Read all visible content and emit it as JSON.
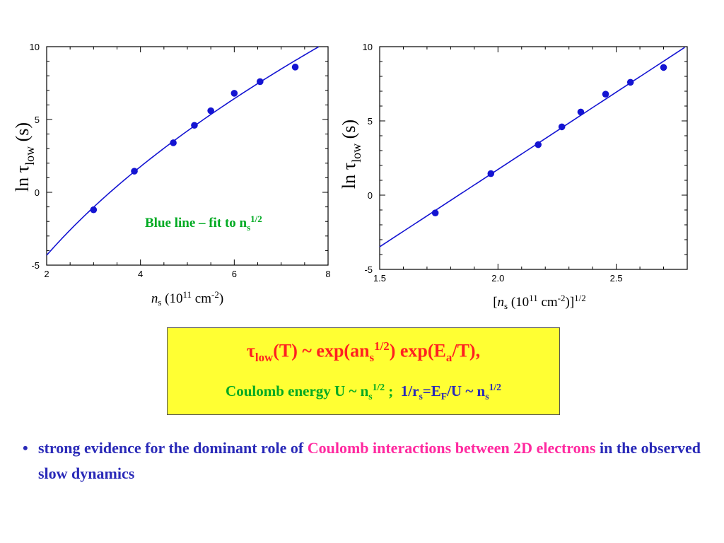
{
  "chart_data": [
    {
      "type": "scatter",
      "xlim": [
        2,
        8
      ],
      "ylim": [
        -5,
        10
      ],
      "xticks": [
        "2",
        "4",
        "6",
        "8"
      ],
      "yticks": [
        "-5",
        "0",
        "5",
        "10"
      ],
      "xlabel": {
        "var": "n",
        "sub": "s",
        "pre": "(10",
        "sup1": "11",
        "mid": " cm",
        "sup2": "-2",
        "post": ")"
      },
      "ylabel": {
        "pre": "ln ",
        "tau": "τ",
        "sub": "low",
        "post": " (s)"
      },
      "points": [
        [
          3.0,
          -1.2
        ],
        [
          3.87,
          1.45
        ],
        [
          4.7,
          3.4
        ],
        [
          5.15,
          4.6
        ],
        [
          5.5,
          5.6
        ],
        [
          6.0,
          6.8
        ],
        [
          6.55,
          7.6
        ],
        [
          7.3,
          8.6
        ]
      ],
      "fit": {
        "type": "sqrt",
        "color": "#1414d2"
      },
      "annotation": {
        "text": "Blue line – fit to n",
        "sub": "s",
        "sup": "1/2",
        "color": "#00aa22"
      }
    },
    {
      "type": "scatter",
      "xlim": [
        1.5,
        2.8
      ],
      "ylim": [
        -5,
        10
      ],
      "xticks": [
        "1.5",
        "2.0",
        "2.5"
      ],
      "yticks": [
        "-5",
        "0",
        "5",
        "10"
      ],
      "xlabel": {
        "pre": "[",
        "var": "n",
        "sub": "s",
        "mid": " (10",
        "sup1": "11",
        "mid2": " cm",
        "sup2": "-2",
        "post": ")]",
        "sup3": "1/2"
      },
      "ylabel": {
        "pre": "ln ",
        "tau": "τ",
        "sub": "low",
        "post": " (s)"
      },
      "points": [
        [
          1.735,
          -1.2
        ],
        [
          1.97,
          1.45
        ],
        [
          2.17,
          3.4
        ],
        [
          2.27,
          4.6
        ],
        [
          2.35,
          5.6
        ],
        [
          2.455,
          6.8
        ],
        [
          2.56,
          7.6
        ],
        [
          2.7,
          8.6
        ]
      ],
      "fit": {
        "type": "linear",
        "color": "#1414d2"
      }
    }
  ],
  "formula": {
    "tau": "τ",
    "low": "low",
    "line1_a": "(T) ~ exp(an",
    "s1": "s",
    "half1": "1/2",
    "line1_b": ") exp(E",
    "a": "a",
    "line1_c": "/T),",
    "coulomb": "Coulomb energy U ~ n",
    "s2": "s",
    "half2": "1/2",
    "sep": " ;",
    "rs_a": "  1/r",
    "s3": "s",
    "rs_b": "=E",
    "F": "F",
    "rs_c": "/U ~ n",
    "s4": "s",
    "half3": "1/2"
  },
  "bullet": {
    "dot": "•",
    "part1": "strong evidence for the dominant role of ",
    "part2": "Coulomb interactions between 2D electrons",
    "part3": " in the observed slow dynamics"
  },
  "colors": {
    "points": "#1414d2",
    "fit": "#1414d2",
    "navy": "#2a2ab8",
    "pink": "#ff2aa0",
    "green": "#00aa22",
    "red": "#ff2020",
    "box": "#ffff33"
  }
}
